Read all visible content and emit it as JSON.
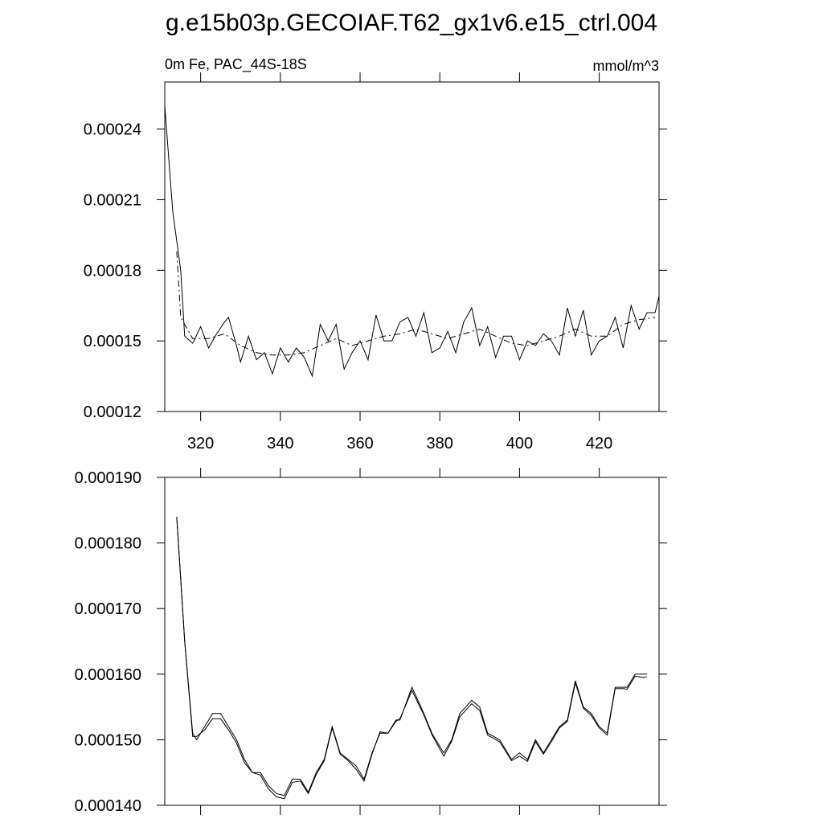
{
  "title": "g.e15b03p.GECOIAF.T62_gx1v6.e15_ctrl.004",
  "chart_data": [
    {
      "type": "line",
      "left_string": "0m Fe, PAC_44S-18S",
      "right_string": "mmol/m^3",
      "xlim": [
        311,
        435
      ],
      "xticks": [
        320,
        340,
        360,
        380,
        400,
        420
      ],
      "ylim": [
        0.00012,
        0.00026
      ],
      "yticks": [
        0.00012,
        0.00015,
        0.00018,
        0.00021,
        0.00024
      ],
      "series": [
        {
          "color": "#000000",
          "dash": false,
          "x": [
            311,
            313,
            315,
            316,
            318,
            320,
            322,
            324,
            326,
            327,
            329,
            330,
            332,
            334,
            336,
            338,
            340,
            342,
            344,
            346,
            348,
            350,
            352,
            354,
            356,
            358,
            360,
            362,
            364,
            366,
            368,
            370,
            372,
            374,
            376,
            378,
            380,
            382,
            384,
            386,
            388,
            390,
            392,
            394,
            396,
            398,
            400,
            402,
            404,
            406,
            408,
            410,
            412,
            414,
            416,
            418,
            420,
            422,
            424,
            426,
            428,
            430,
            432,
            434,
            435
          ],
          "values": [
            0.00025,
            0.000205,
            0.00018,
            0.000152,
            0.000149,
            0.000156,
            0.000147,
            0.000153,
            0.000158,
            0.00016,
            0.000148,
            0.000141,
            0.000152,
            0.000142,
            0.000145,
            0.000136,
            0.000147,
            0.000141,
            0.000147,
            0.000143,
            0.000135,
            0.000157,
            0.00015,
            0.000157,
            0.000138,
            0.000145,
            0.00015,
            0.000142,
            0.000161,
            0.00015,
            0.00015,
            0.000158,
            0.00016,
            0.000152,
            0.000162,
            0.000145,
            0.000147,
            0.000154,
            0.000145,
            0.000158,
            0.000164,
            0.000148,
            0.000156,
            0.000143,
            0.000152,
            0.000152,
            0.000142,
            0.00015,
            0.000148,
            0.000153,
            0.00015,
            0.000144,
            0.000164,
            0.000152,
            0.000163,
            0.000144,
            0.00015,
            0.000152,
            0.00016,
            0.000147,
            0.000165,
            0.000155,
            0.000162,
            0.000162,
            0.000169
          ]
        },
        {
          "color": "#000000",
          "dash": true,
          "x": [
            314,
            315,
            318,
            322,
            326,
            330,
            334,
            338,
            342,
            346,
            350,
            354,
            358,
            362,
            366,
            370,
            374,
            378,
            382,
            386,
            390,
            394,
            398,
            402,
            406,
            410,
            414,
            418,
            422,
            426,
            430,
            434
          ],
          "values": [
            0.000188,
            0.00016,
            0.000151,
            0.000151,
            0.000153,
            0.000148,
            0.000145,
            0.000144,
            0.000144,
            0.000145,
            0.000148,
            0.000151,
            0.000148,
            0.00015,
            0.000152,
            0.000153,
            0.000155,
            0.000153,
            0.000151,
            0.000153,
            0.000155,
            0.000152,
            0.000149,
            0.000148,
            0.00015,
            0.000152,
            0.000155,
            0.000152,
            0.000152,
            0.000157,
            0.000159,
            0.00016
          ]
        }
      ]
    },
    {
      "type": "line",
      "xlim": [
        311,
        435
      ],
      "xticks": [
        320,
        340,
        360,
        380,
        400,
        420
      ],
      "ylim": [
        0.00014,
        0.00019
      ],
      "yticks": [
        {
          "value": 0.00014,
          "label": "0.000140"
        },
        {
          "value": 0.00015,
          "label": "0.000150"
        },
        {
          "value": 0.00016,
          "label": "0.000160"
        },
        {
          "value": 0.00017,
          "label": "0.000170"
        },
        {
          "value": 0.00018,
          "label": "0.000180"
        },
        {
          "value": 0.00019,
          "label": "0.000190"
        }
      ],
      "series": [
        {
          "color": "#000000",
          "dash": false,
          "x": [
            314,
            316,
            318,
            319,
            321,
            323,
            325,
            327,
            329,
            331,
            333,
            335,
            337,
            339,
            341,
            343,
            345,
            347,
            349,
            351,
            353,
            355,
            357,
            359,
            361,
            363,
            365,
            367,
            369,
            370,
            373,
            376,
            378,
            381,
            383,
            385,
            388,
            390,
            392,
            395,
            398,
            400,
            402,
            404,
            406,
            408,
            410,
            412,
            414,
            416,
            418,
            420,
            422,
            424,
            426,
            427,
            429,
            431,
            432
          ],
          "values": [
            0.000184,
            0.000165,
            0.000151,
            0.00015,
            0.000152,
            0.000154,
            0.000154,
            0.000152,
            0.00015,
            0.000147,
            0.000145,
            0.000145,
            0.000143,
            0.0001418,
            0.0001415,
            0.000144,
            0.000144,
            0.000142,
            0.000145,
            0.000147,
            0.000152,
            0.000148,
            0.000147,
            0.000146,
            0.000144,
            0.000148,
            0.000151,
            0.000151,
            0.000153,
            0.000153,
            0.000158,
            0.000154,
            0.000151,
            0.000148,
            0.00015,
            0.000154,
            0.000156,
            0.000155,
            0.000151,
            0.00015,
            0.000147,
            0.000148,
            0.000147,
            0.00015,
            0.000148,
            0.00015,
            0.000152,
            0.000153,
            0.000159,
            0.000155,
            0.000154,
            0.000152,
            0.000151,
            0.000158,
            0.000158,
            0.000158,
            0.00016,
            0.00016,
            0.00016
          ]
        },
        {
          "color": "#000000",
          "dash": false,
          "x": [
            314,
            316,
            318,
            319,
            321,
            323,
            325,
            327,
            329,
            331,
            333,
            335,
            337,
            339,
            341,
            343,
            345,
            347,
            349,
            351,
            353,
            355,
            357,
            359,
            361,
            363,
            365,
            367,
            369,
            370,
            373,
            376,
            378,
            381,
            383,
            385,
            388,
            390,
            392,
            395,
            398,
            400,
            402,
            404,
            406,
            408,
            410,
            412,
            414,
            416,
            418,
            420,
            422,
            424,
            426,
            427,
            429,
            431,
            432
          ],
          "values": [
            0.000184,
            0.000165,
            0.0001505,
            0.0001505,
            0.0001515,
            0.0001532,
            0.0001532,
            0.0001515,
            0.0001495,
            0.0001465,
            0.000145,
            0.0001446,
            0.0001425,
            0.0001413,
            0.000141,
            0.0001435,
            0.0001437,
            0.0001418,
            0.0001447,
            0.0001468,
            0.0001518,
            0.0001478,
            0.0001468,
            0.0001455,
            0.0001437,
            0.0001478,
            0.0001512,
            0.000151,
            0.0001528,
            0.0001532,
            0.0001575,
            0.0001538,
            0.0001508,
            0.0001475,
            0.0001498,
            0.0001535,
            0.0001555,
            0.0001545,
            0.0001507,
            0.0001497,
            0.0001468,
            0.0001475,
            0.0001467,
            0.0001497,
            0.0001478,
            0.0001497,
            0.0001518,
            0.0001528,
            0.0001587,
            0.0001548,
            0.0001537,
            0.0001518,
            0.0001507,
            0.0001578,
            0.0001578,
            0.0001577,
            0.0001597,
            0.0001595,
            0.0001596
          ]
        }
      ]
    }
  ]
}
